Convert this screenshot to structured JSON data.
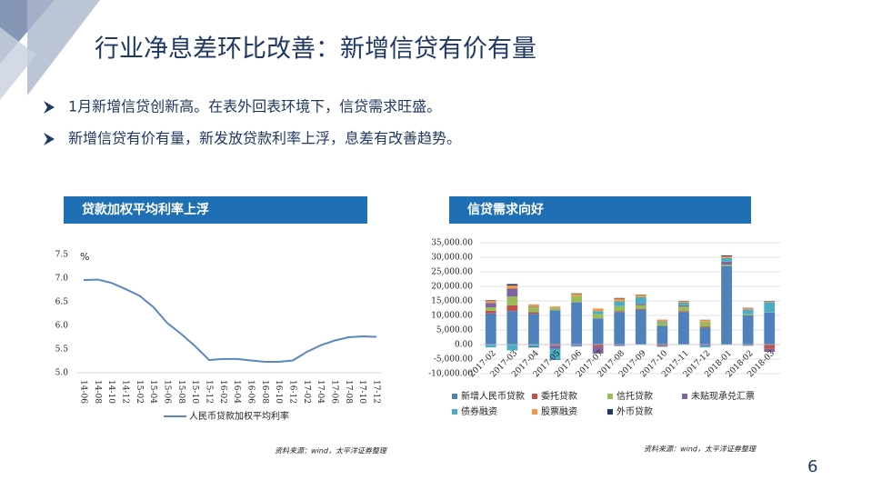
{
  "title": "行业净息差环比改善：新增信贷有价有量",
  "bullets": [
    "1月新增信贷创新高。在表外回表环境下，信贷需求旺盛。",
    "新增信贷有价有量，新发放贷款利率上浮，息差有改善趋势。"
  ],
  "page_number": "6",
  "chart_data": [
    {
      "type": "line",
      "title": "贷款加权平均利率上浮",
      "y_unit": "%",
      "source": "资料来源：wind，太平洋证券整理",
      "categories": [
        "14-06",
        "14-08",
        "14-10",
        "14-12",
        "15-02",
        "15-04",
        "15-06",
        "15-08",
        "15-10",
        "15-12",
        "16-02",
        "16-04",
        "16-06",
        "16-08",
        "16-10",
        "16-12",
        "17-02",
        "17-04",
        "17-06",
        "17-08",
        "17-10",
        "17-12"
      ],
      "series": [
        {
          "name": "人民币贷款加权平均利率",
          "color": "#5b87c5",
          "values": [
            6.96,
            6.97,
            6.9,
            6.77,
            6.63,
            6.39,
            6.05,
            5.82,
            5.56,
            5.27,
            5.29,
            5.29,
            5.26,
            5.23,
            5.23,
            5.26,
            5.44,
            5.58,
            5.68,
            5.75,
            5.77,
            5.76
          ]
        }
      ],
      "ylim": [
        5.0,
        7.5
      ],
      "yticks": [
        {
          "value": 5.0,
          "label": "5.0"
        },
        5.5,
        {
          "value": 6.0,
          "label": "6.0"
        },
        6.5,
        {
          "value": 7.0,
          "label": "7.0"
        },
        7.5
      ],
      "grid": false
    },
    {
      "type": "bar",
      "stacked": true,
      "title": "信贷需求向好",
      "source": "资料来源：wind，太平洋证券整理",
      "categories": [
        "2017-02",
        "2017-03",
        "2017-04",
        "2017-05",
        "2017-06",
        "2017-07",
        "2017-08",
        "2017-09",
        "2017-10",
        "2017-11",
        "2017-12",
        "2018-01",
        "2018-02",
        "2018-03"
      ],
      "series": [
        {
          "name": "新增人民币贷款",
          "color": "#4f81bd",
          "values": [
            10700,
            11500,
            10600,
            11800,
            14500,
            9000,
            11200,
            12000,
            6400,
            11200,
            5800,
            27000,
            10000,
            11000
          ]
        },
        {
          "name": "委托贷款",
          "color": "#c0504d",
          "values": [
            900,
            2000,
            500,
            -400,
            100,
            -800,
            300,
            300,
            -300,
            300,
            400,
            -100,
            -100,
            -1500
          ]
        },
        {
          "name": "信托贷款",
          "color": "#9bbb59",
          "values": [
            1200,
            3000,
            1700,
            800,
            2200,
            1500,
            1700,
            1200,
            1200,
            1600,
            1700,
            500,
            400,
            100
          ]
        },
        {
          "name": "未贴现承兑汇票",
          "color": "#8064a2",
          "values": [
            1500,
            2800,
            200,
            -1000,
            -500,
            -2000,
            -500,
            500,
            -300,
            400,
            -500,
            1000,
            -300,
            -1000
          ]
        },
        {
          "name": "债券融资",
          "color": "#4bacc6",
          "values": [
            -1000,
            -2000,
            -800,
            -3800,
            -200,
            1000,
            1700,
            2300,
            400,
            900,
            -500,
            1300,
            1600,
            3500
          ]
        },
        {
          "name": "股票融资",
          "color": "#f79646",
          "values": [
            700,
            1000,
            800,
            500,
            600,
            900,
            900,
            800,
            600,
            500,
            500,
            500,
            500,
            300
          ]
        },
        {
          "name": "外币贷款",
          "color": "#1f3864",
          "values": [
            200,
            500,
            -200,
            -100,
            200,
            -200,
            200,
            100,
            -100,
            100,
            100,
            300,
            100,
            100
          ]
        }
      ],
      "ylim": [
        -10000,
        35000
      ],
      "yticks": [
        {
          "value": -10000,
          "label": "-10,000.00"
        },
        {
          "value": -5000,
          "label": "-5,000.00"
        },
        {
          "value": 0,
          "label": "0.00"
        },
        {
          "value": 5000,
          "label": "5,000.00"
        },
        {
          "value": 10000,
          "label": "10,000.00"
        },
        {
          "value": 15000,
          "label": "15,000.00"
        },
        {
          "value": 20000,
          "label": "20,000.00"
        },
        {
          "value": 25000,
          "label": "25,000.00"
        },
        {
          "value": 30000,
          "label": "30,000.00"
        },
        {
          "value": 35000,
          "label": "35,000.00"
        }
      ],
      "grid": true
    }
  ]
}
